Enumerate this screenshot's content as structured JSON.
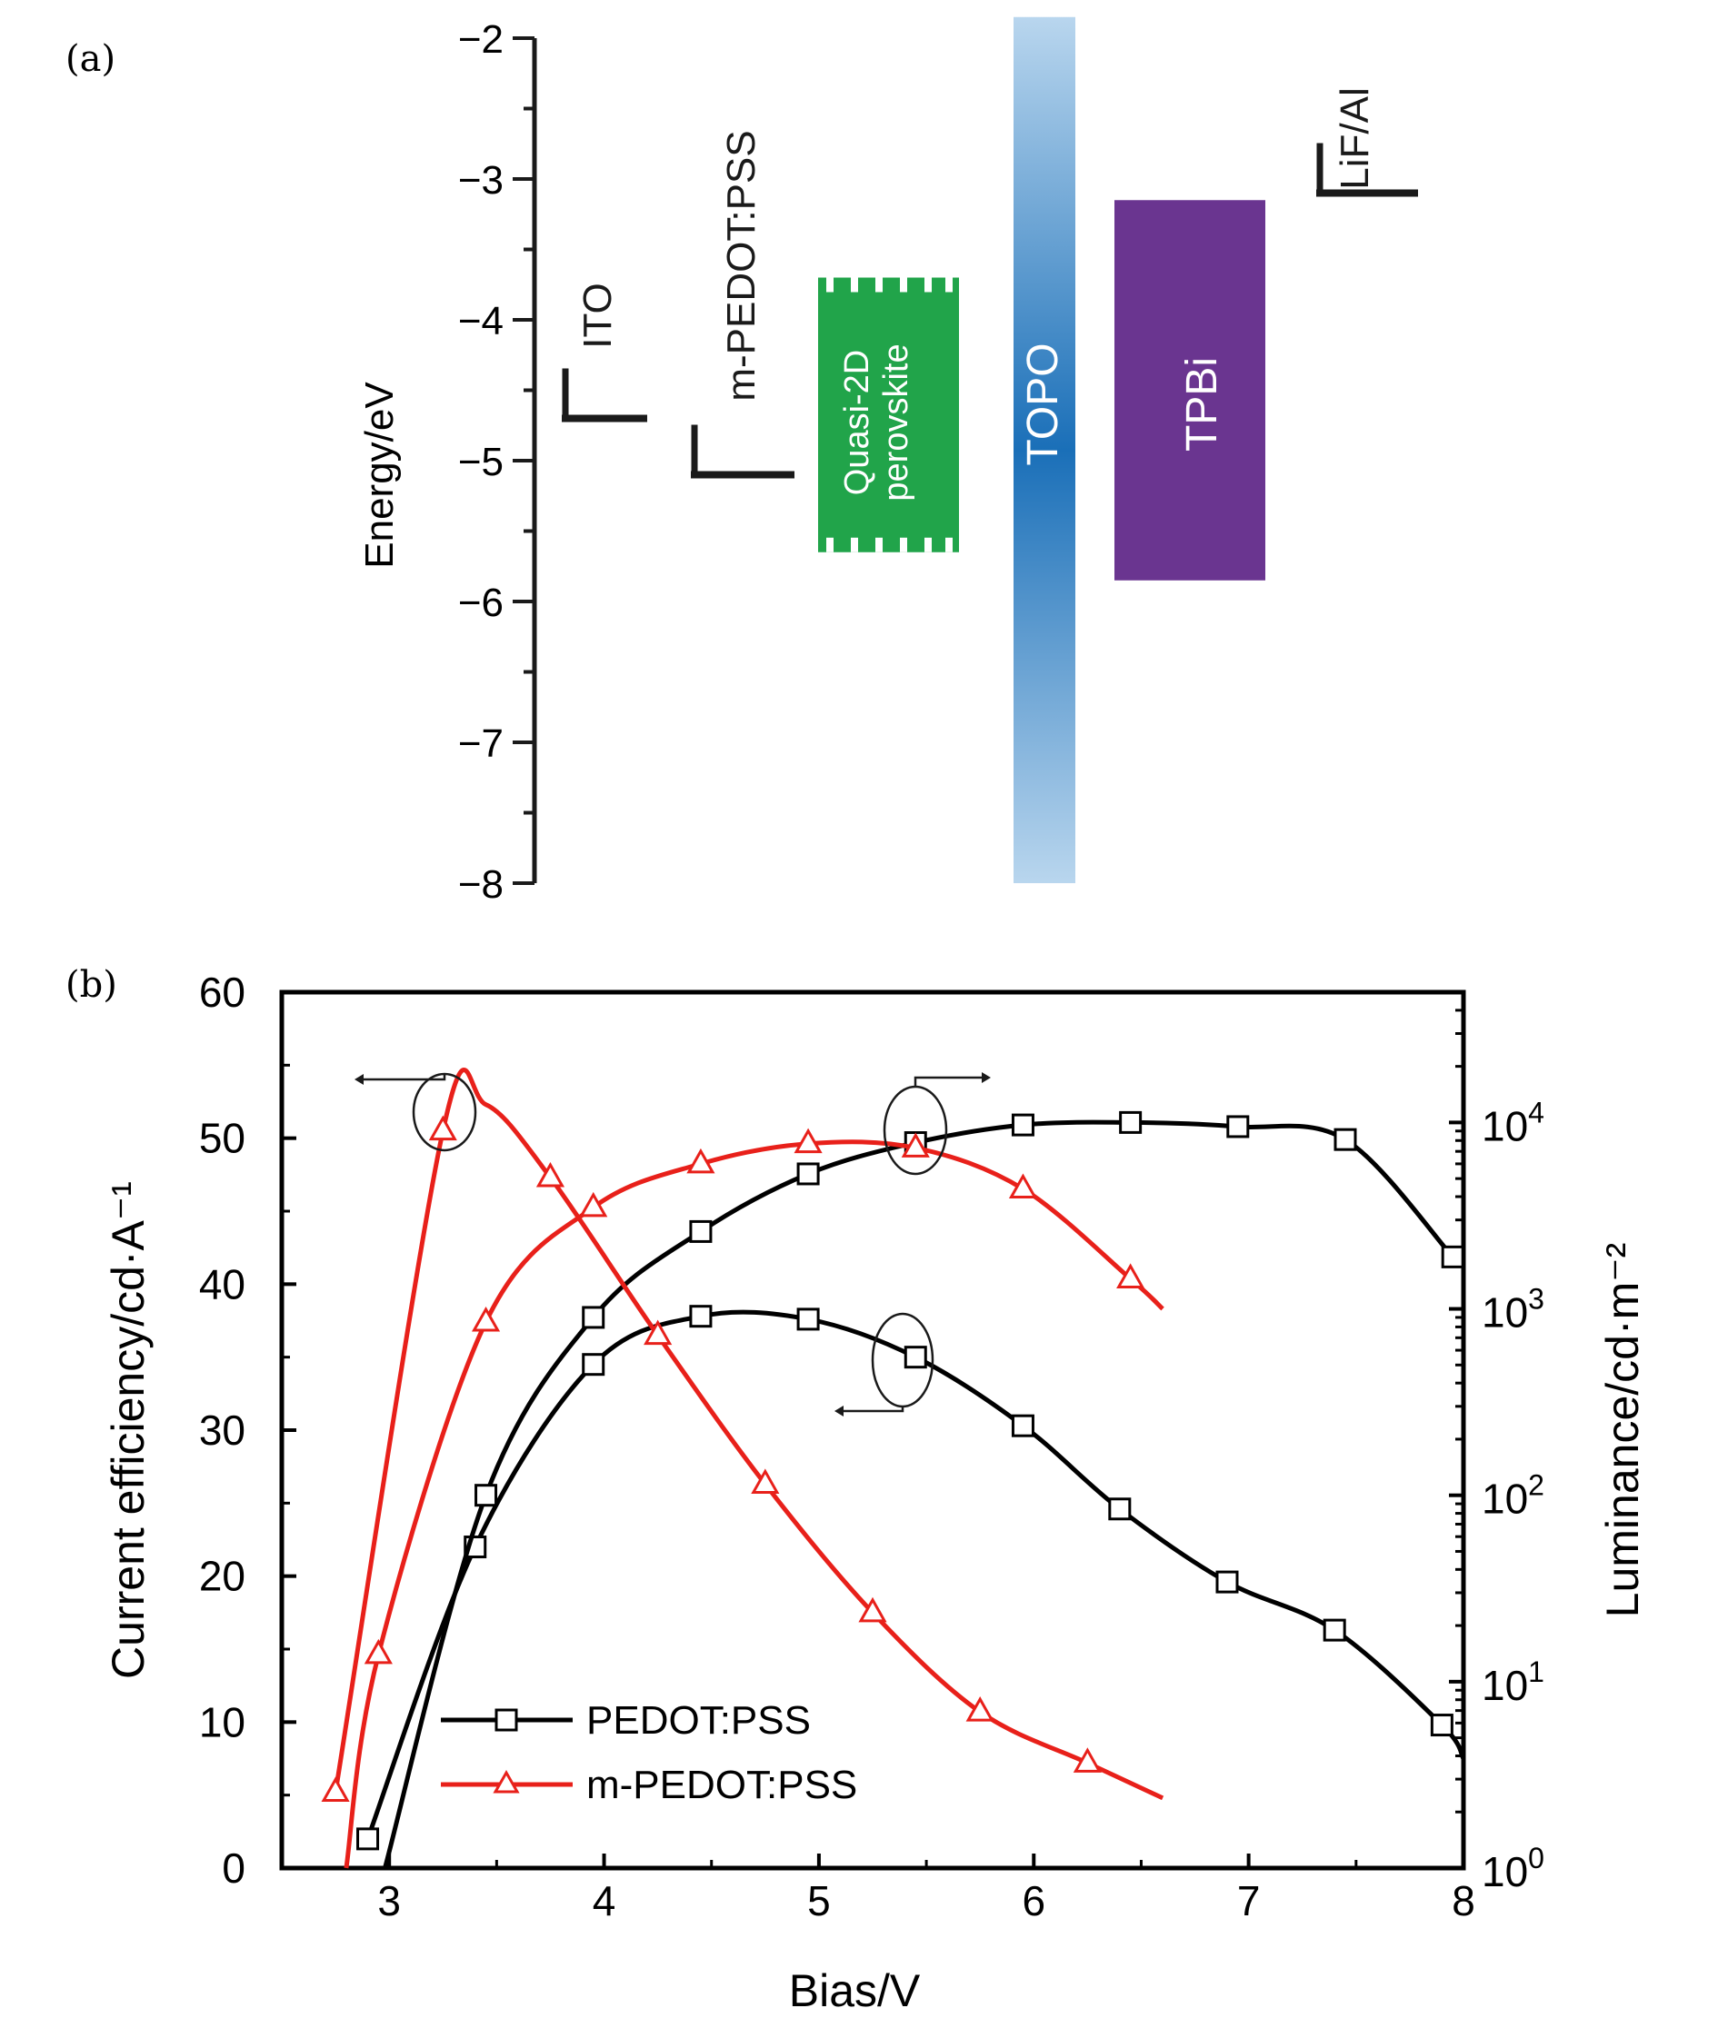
{
  "chart_data": [
    {
      "panel_label": "(a)",
      "type": "bar",
      "subtype": "energy-level-diagram",
      "ylabel": "Energy/eV",
      "ylim": [
        -8,
        -2
      ],
      "yticks": [
        -2,
        -3,
        -4,
        -5,
        -6,
        -7,
        -8
      ],
      "ytick_labels": [
        "−2",
        "−3",
        "−4",
        "−5",
        "−6",
        "−7",
        "−8"
      ],
      "levels": [
        {
          "label": "ITO",
          "energy": -4.7,
          "color": "#1a1a1a"
        },
        {
          "label": "m-PEDOT:PSS",
          "energy": -5.1,
          "color": "#1a1a1a"
        },
        {
          "label": "LiF/Al",
          "energy": -3.1,
          "color": "#1a1a1a"
        }
      ],
      "bands": [
        {
          "label": "Quasi-2D",
          "label2": "perovskite",
          "top": -3.7,
          "bottom": -5.65,
          "color": "#21a44a"
        },
        {
          "label": "TOPO",
          "top": -1.85,
          "bottom": -8.0,
          "color": "#1a6fb8"
        },
        {
          "label": "TPBi",
          "top": -3.15,
          "bottom": -5.85,
          "color": "#6a3590"
        }
      ]
    },
    {
      "panel_label": "(b)",
      "type": "line",
      "xlabel": "Bias/V",
      "ylabel": "Current efficiency/cd·A⁻¹",
      "y2label": "Luminance/cd·m⁻²",
      "xlim": [
        2.5,
        8
      ],
      "ylim": [
        0,
        60
      ],
      "y2lim": [
        1,
        50000
      ],
      "y2scale": "log",
      "xticks": [
        "3",
        "4",
        "5",
        "6",
        "7",
        "8"
      ],
      "yticks": [
        "0",
        "10",
        "20",
        "30",
        "40",
        "50",
        "60"
      ],
      "y2ticks": [
        {
          "base": "10",
          "exp": "0"
        },
        {
          "base": "10",
          "exp": "1"
        },
        {
          "base": "10",
          "exp": "2"
        },
        {
          "base": "10",
          "exp": "3"
        },
        {
          "base": "10",
          "exp": "4"
        }
      ],
      "legend_position": "lower-left",
      "series": [
        {
          "name": "PEDOT:PSS",
          "quantity": "current efficiency",
          "axis": "left",
          "color": "#000000",
          "marker": "square",
          "x": [
            2.9,
            3.4,
            3.95,
            4.45,
            4.95,
            5.45,
            5.95,
            6.4,
            6.9,
            7.4,
            7.9,
            8.0
          ],
          "y": [
            2.0,
            22.0,
            34.5,
            37.8,
            37.6,
            35.0,
            30.3,
            24.6,
            19.6,
            16.3,
            9.8,
            7.5
          ],
          "markers": [
            true,
            true,
            true,
            true,
            true,
            true,
            true,
            true,
            true,
            true,
            true,
            false
          ]
        },
        {
          "name": "PEDOT:PSS",
          "quantity": "luminance",
          "axis": "right",
          "color": "#000000",
          "marker": "square",
          "x": [
            2.98,
            3.45,
            3.95,
            4.45,
            4.95,
            5.45,
            5.95,
            6.45,
            6.95,
            7.45,
            7.95
          ],
          "y": [
            1.0,
            100,
            900,
            2600,
            5300,
            7800,
            9700,
            10000,
            9500,
            8100,
            1900
          ],
          "markers": [
            false,
            true,
            true,
            true,
            true,
            true,
            true,
            true,
            true,
            true,
            true
          ]
        },
        {
          "name": "m-PEDOT:PSS",
          "quantity": "current efficiency",
          "axis": "left",
          "color": "#e8201a",
          "marker": "triangle",
          "x": [
            2.75,
            3.25,
            3.45,
            3.75,
            4.25,
            4.75,
            5.25,
            5.75,
            6.25,
            6.6
          ],
          "y": [
            5.2,
            50.5,
            52.3,
            47.3,
            36.5,
            26.3,
            17.5,
            10.7,
            7.2,
            4.8
          ],
          "markers": [
            true,
            true,
            false,
            true,
            true,
            true,
            true,
            true,
            true,
            false
          ]
        },
        {
          "name": "m-PEDOT:PSS",
          "quantity": "luminance",
          "axis": "right",
          "color": "#e8201a",
          "marker": "triangle",
          "x": [
            2.8,
            2.95,
            3.45,
            3.95,
            4.45,
            4.95,
            5.45,
            5.95,
            6.45,
            6.6
          ],
          "y": [
            1.0,
            14,
            850,
            3500,
            6000,
            7700,
            7300,
            4400,
            1450,
            1000
          ],
          "markers": [
            false,
            true,
            true,
            true,
            true,
            true,
            true,
            true,
            true,
            false
          ]
        }
      ]
    }
  ]
}
